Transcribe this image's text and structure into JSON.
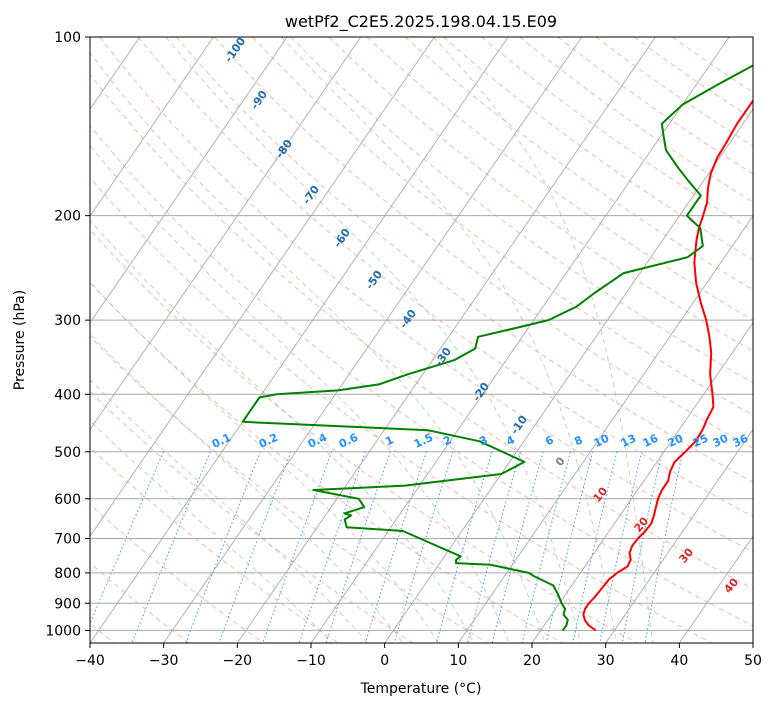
{
  "chart_data": {
    "type": "line",
    "title": "wetPf2_C2E5.2025.198.04.15.E09",
    "xlabel": "Temperature (°C)",
    "ylabel": "Pressure (hPa)",
    "xlim": [
      -40,
      50
    ],
    "ylim": [
      1050,
      100
    ],
    "y_scale": "log",
    "x_ticks": [
      -40,
      -30,
      -20,
      -10,
      0,
      10,
      20,
      30,
      40,
      50
    ],
    "y_ticks": [
      100,
      200,
      300,
      400,
      500,
      600,
      700,
      800,
      900,
      1000
    ],
    "grid": true,
    "series": [
      {
        "color": "#ff0000",
        "points": [
          [
            27.5,
            1000
          ],
          [
            26.0,
            980
          ],
          [
            25.0,
            960
          ],
          [
            24.3,
            940
          ],
          [
            24.0,
            920
          ],
          [
            24.0,
            900
          ],
          [
            24.2,
            880
          ],
          [
            24.3,
            860
          ],
          [
            24.4,
            840
          ],
          [
            24.5,
            820
          ],
          [
            25.0,
            800
          ],
          [
            25.8,
            780
          ],
          [
            25.6,
            760
          ],
          [
            24.8,
            740
          ],
          [
            24.5,
            720
          ],
          [
            24.6,
            700
          ],
          [
            24.9,
            680
          ],
          [
            25.0,
            660
          ],
          [
            24.6,
            640
          ],
          [
            24.1,
            620
          ],
          [
            23.6,
            600
          ],
          [
            23.3,
            580
          ],
          [
            23.3,
            560
          ],
          [
            22.7,
            540
          ],
          [
            22.4,
            520
          ],
          [
            22.9,
            500
          ],
          [
            23.3,
            480
          ],
          [
            23.2,
            460
          ],
          [
            22.8,
            440
          ],
          [
            22.5,
            420
          ],
          [
            21.2,
            400
          ],
          [
            19.0,
            370
          ],
          [
            17.1,
            340
          ],
          [
            15.4,
            320
          ],
          [
            13.4,
            300
          ],
          [
            11.0,
            280
          ],
          [
            8.6,
            260
          ],
          [
            6.4,
            240
          ],
          [
            4.6,
            220
          ],
          [
            3.8,
            210
          ],
          [
            3.2,
            200
          ],
          [
            2.5,
            190
          ],
          [
            1.3,
            180
          ],
          [
            0.3,
            170
          ],
          [
            -0.3,
            160
          ],
          [
            -0.5,
            150
          ],
          [
            -0.8,
            140
          ],
          [
            -0.8,
            130
          ],
          [
            -0.7,
            120
          ],
          [
            -1.0,
            110
          ],
          [
            -1.1,
            105
          ],
          [
            -1.2,
            100
          ]
        ]
      },
      {
        "color": "#008000",
        "points": [
          [
            23.0,
            1000
          ],
          [
            23.0,
            980
          ],
          [
            22.7,
            960
          ],
          [
            21.6,
            940
          ],
          [
            21.3,
            920
          ],
          [
            20.3,
            900
          ],
          [
            19.0,
            870
          ],
          [
            17.5,
            840
          ],
          [
            14.0,
            810
          ],
          [
            13.0,
            800
          ],
          [
            7.0,
            775
          ],
          [
            2.2,
            770
          ],
          [
            1.9,
            760
          ],
          [
            2.2,
            750
          ],
          [
            -5.0,
            700
          ],
          [
            -8.0,
            680
          ],
          [
            -16.0,
            670
          ],
          [
            -17.0,
            650
          ],
          [
            -16.5,
            640
          ],
          [
            -17.6,
            635
          ],
          [
            -15.5,
            620
          ],
          [
            -17.0,
            600
          ],
          [
            -24.0,
            580
          ],
          [
            -12.0,
            570
          ],
          [
            0.0,
            545
          ],
          [
            2.0,
            520
          ],
          [
            -6.0,
            480
          ],
          [
            -14.0,
            460
          ],
          [
            -40.0,
            445
          ],
          [
            -40.0,
            405
          ],
          [
            -38.0,
            400
          ],
          [
            -30.0,
            394
          ],
          [
            -25.0,
            385
          ],
          [
            -22.0,
            370
          ],
          [
            -17.0,
            350
          ],
          [
            -15.3,
            335
          ],
          [
            -16.0,
            320
          ],
          [
            -12.0,
            310
          ],
          [
            -8.0,
            300
          ],
          [
            -5.5,
            285
          ],
          [
            -4.3,
            270
          ],
          [
            -2.2,
            250
          ],
          [
            5.0,
            235
          ],
          [
            6.0,
            225
          ],
          [
            4.0,
            210
          ],
          [
            1.0,
            200
          ],
          [
            1.0,
            185
          ],
          [
            -2.0,
            175
          ],
          [
            -5.0,
            165
          ],
          [
            -8.0,
            155
          ],
          [
            -10.0,
            145
          ],
          [
            -11.0,
            140
          ],
          [
            -10.0,
            130
          ],
          [
            -7.0,
            120
          ],
          [
            -3.5,
            110
          ],
          [
            -1.5,
            100
          ]
        ]
      }
    ],
    "annotations": {
      "dry_adiabat_labels": [
        "-100",
        "-90",
        "-80",
        "-70",
        "-60",
        "-50",
        "-40",
        "-30",
        "-20",
        "-10",
        "0",
        "10",
        "20",
        "30",
        "40"
      ],
      "mixing_ratio_labels": [
        "0.1",
        "0.2",
        "0.4",
        "0.6",
        "1",
        "1.5",
        "2",
        "3",
        "4",
        "6",
        "8",
        "10",
        "13",
        "16",
        "20",
        "25",
        "30",
        "36"
      ]
    }
  },
  "colors": {
    "temperature": "#ff0000",
    "dewpoint": "#008000",
    "grid": "#a9a9a9",
    "dry_adiabat": "#f08060",
    "moist_adiabat": "#8fbf8f",
    "mixing_ratio": "#1e90ff",
    "dry_label": "#1f6db0",
    "moist_label_low": "#808080",
    "moist_label_warm": "#d62728"
  }
}
